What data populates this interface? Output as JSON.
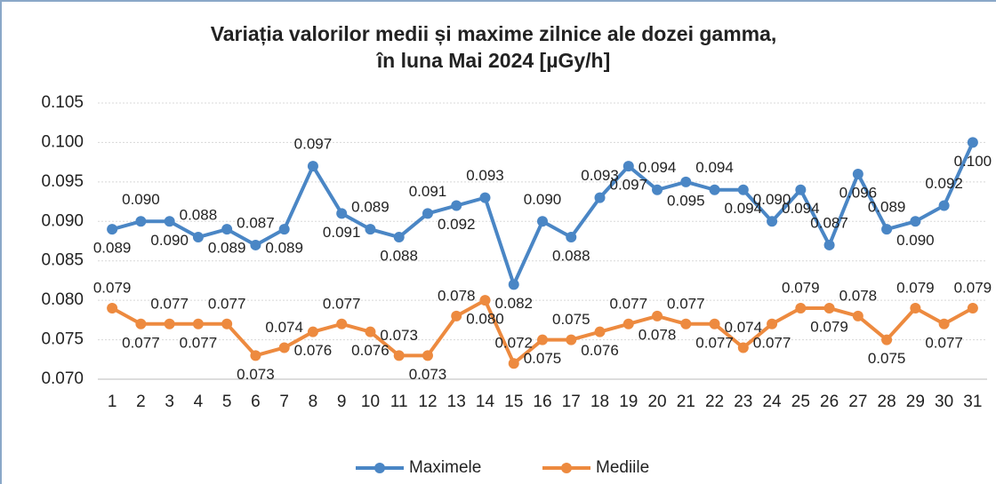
{
  "chart_data": {
    "type": "line",
    "title": [
      "Variația valorilor medii și maxime zilnice ale dozei gamma,",
      "în luna Mai 2024 [µGy/h]"
    ],
    "categories": [
      "1",
      "2",
      "3",
      "4",
      "5",
      "6",
      "7",
      "8",
      "9",
      "10",
      "11",
      "12",
      "13",
      "14",
      "15",
      "16",
      "17",
      "18",
      "19",
      "20",
      "21",
      "22",
      "23",
      "24",
      "25",
      "26",
      "27",
      "28",
      "29",
      "30",
      "31"
    ],
    "series": [
      {
        "name": "Maximele",
        "color": "#4a86c5",
        "values": [
          0.089,
          0.09,
          0.09,
          0.088,
          0.089,
          0.087,
          0.089,
          0.097,
          0.091,
          0.089,
          0.088,
          0.091,
          0.092,
          0.093,
          0.082,
          0.09,
          0.088,
          0.093,
          0.097,
          0.094,
          0.095,
          0.094,
          0.094,
          0.09,
          0.094,
          0.087,
          0.096,
          0.089,
          0.09,
          0.092,
          0.1
        ],
        "value_labels": [
          "0.089",
          "0.090",
          "0.090",
          "0.088",
          "0.089",
          "0.087",
          "0.089",
          "0.097",
          "0.091",
          "0.089",
          "0.088",
          "0.091",
          "0.092",
          "0.093",
          "0.082",
          "0.090",
          "0.088",
          "0.093",
          "0.097",
          "0.094",
          "0.095",
          "0.094",
          "0.094",
          "0.090",
          "0.094",
          "0.087",
          "0.096",
          "0.089",
          "0.090",
          "0.092",
          "0.100"
        ]
      },
      {
        "name": "Mediile",
        "color": "#ed8a3f",
        "values": [
          0.079,
          0.077,
          0.077,
          0.077,
          0.077,
          0.073,
          0.074,
          0.076,
          0.077,
          0.076,
          0.073,
          0.073,
          0.078,
          0.08,
          0.072,
          0.075,
          0.075,
          0.076,
          0.077,
          0.078,
          0.077,
          0.077,
          0.074,
          0.077,
          0.079,
          0.079,
          0.078,
          0.075,
          0.079,
          0.077,
          0.079
        ],
        "value_labels": [
          "0.079",
          "0.077",
          "0.077",
          "0.077",
          "0.077",
          "0.073",
          "0.074",
          "0.076",
          "0.077",
          "0.076",
          "0.073",
          "0.073",
          "0.078",
          "0.080",
          "0.072",
          "0.075",
          "0.075",
          "0.076",
          "0.077",
          "0.078",
          "0.077",
          "0.077",
          "0.074",
          "0.077",
          "0.079",
          "0.079",
          "0.078",
          "0.075",
          "0.079",
          "0.077",
          "0.079"
        ]
      }
    ],
    "ylim": [
      0.07,
      0.105
    ],
    "yticks": [
      0.105,
      {
        "value": 0.1,
        "label": "0.100"
      },
      0.095,
      {
        "value": 0.09,
        "label": "0.090"
      },
      0.085,
      {
        "value": 0.08,
        "label": "0.080"
      },
      0.075,
      {
        "value": 0.07,
        "label": "0.070"
      }
    ],
    "grid": true,
    "legend": "bottom"
  }
}
